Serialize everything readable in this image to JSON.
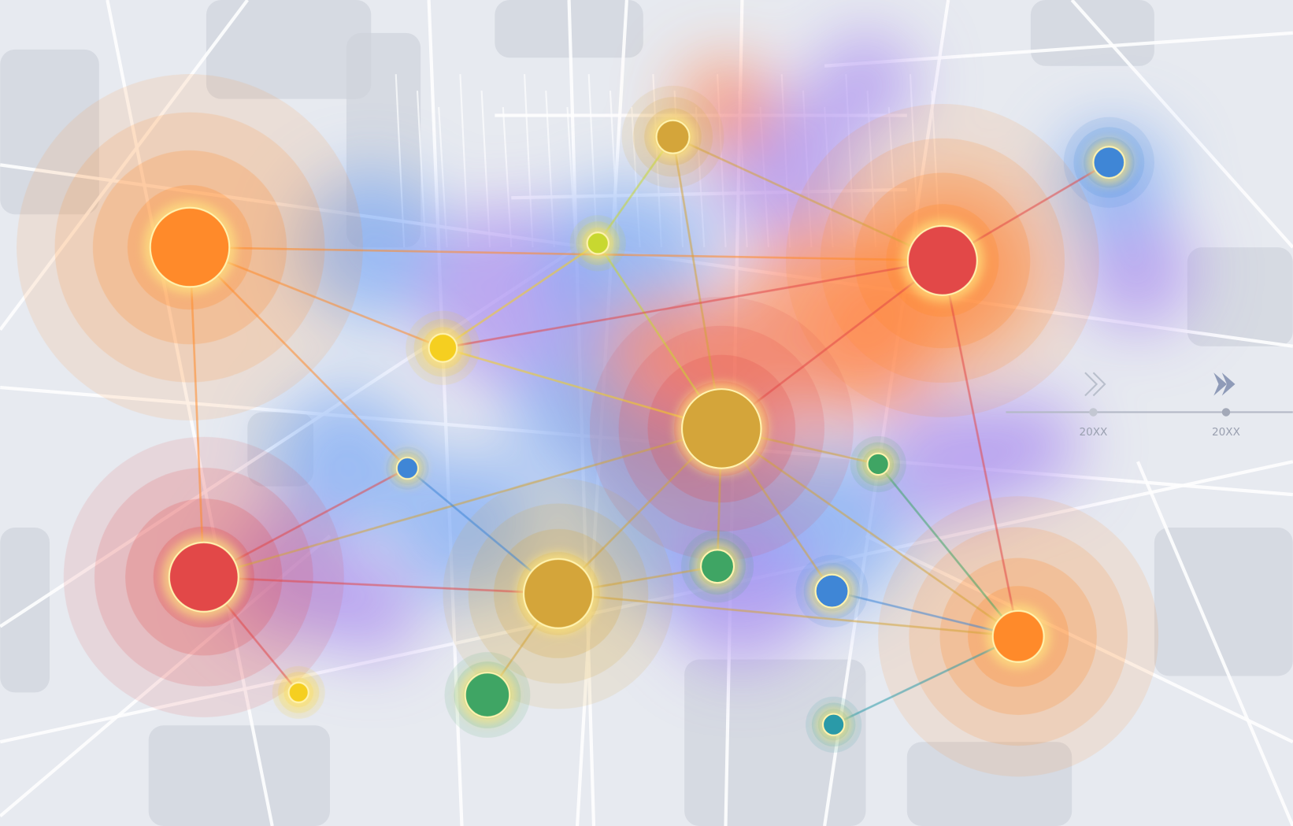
{
  "map": {
    "background_color": "#e7eaf0",
    "block_color": "#cfd3db",
    "road_color": "#ffffff",
    "heat_colors": [
      "#7aa8f5",
      "#a98cf0",
      "#ff8a5c"
    ],
    "node_colors": {
      "orange": "#ff8a2a",
      "red": "#e24848",
      "gold": "#d4a53a",
      "yellow": "#f5cf20",
      "lime": "#c8d830",
      "blue": "#3f86d6",
      "green": "#3fa564",
      "teal": "#2a9aa8"
    }
  },
  "timeline": {
    "markers": [
      {
        "label": "20XX",
        "icon": "chevron-double-right-outline-icon"
      },
      {
        "label": "20XX",
        "icon": "chevron-double-right-filled-icon"
      }
    ]
  }
}
